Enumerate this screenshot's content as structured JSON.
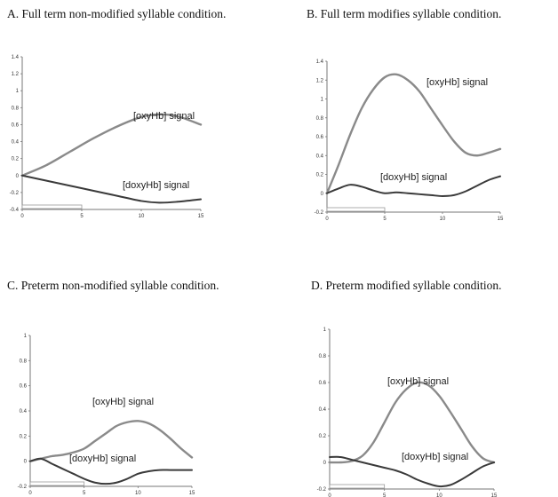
{
  "chart_data": [
    {
      "type": "line",
      "title": "A. Full term non-modified syllable condition.",
      "xlim": [
        0,
        15
      ],
      "ylim": [
        -0.4,
        1.4
      ],
      "xticks": [
        "0",
        "5",
        "10",
        "15"
      ],
      "yticks": [
        "-0.4",
        "-0.2",
        "0",
        "0.2",
        "0.4",
        "0.6",
        "0.8",
        "1",
        "1.2",
        "1.4"
      ],
      "grid": false,
      "series": [
        {
          "name": "[oxyHb] signal",
          "x": [
            0,
            2,
            4,
            6,
            8,
            10,
            11.5,
            13,
            15
          ],
          "values": [
            0,
            0.12,
            0.28,
            0.44,
            0.58,
            0.69,
            0.72,
            0.7,
            0.6
          ]
        },
        {
          "name": "[doxyHb] signal",
          "x": [
            0,
            2,
            4,
            6,
            8,
            10,
            11.5,
            13,
            15
          ],
          "values": [
            0,
            -0.06,
            -0.12,
            -0.18,
            -0.24,
            -0.3,
            -0.32,
            -0.31,
            -0.28
          ]
        }
      ],
      "stimulus": [
        0,
        5
      ]
    },
    {
      "type": "line",
      "title": "B. Full term modifies syllable condition.",
      "xlim": [
        0,
        15
      ],
      "ylim": [
        -0.2,
        1.4
      ],
      "xticks": [
        "0",
        "5",
        "10",
        "15"
      ],
      "yticks": [
        "-0.2",
        "0",
        "0.2",
        "0.4",
        "0.6",
        "0.8",
        "1",
        "1.2",
        "1.4"
      ],
      "grid": false,
      "series": [
        {
          "name": "[oxyHb] signal",
          "x": [
            0,
            1,
            2,
            3,
            4,
            5,
            6,
            7,
            8,
            9,
            10,
            11,
            12,
            13,
            14,
            15
          ],
          "values": [
            0,
            0.3,
            0.62,
            0.9,
            1.1,
            1.23,
            1.26,
            1.2,
            1.08,
            0.9,
            0.72,
            0.55,
            0.43,
            0.4,
            0.43,
            0.47
          ]
        },
        {
          "name": "[doxyHb] signal",
          "x": [
            0,
            1,
            2,
            3,
            4,
            5,
            6,
            7,
            8,
            9,
            10,
            11,
            12,
            13,
            14,
            15
          ],
          "values": [
            0,
            0.05,
            0.09,
            0.07,
            0.03,
            0.0,
            0.01,
            0.0,
            -0.01,
            -0.02,
            -0.03,
            -0.02,
            0.02,
            0.08,
            0.14,
            0.18
          ]
        }
      ],
      "stimulus": [
        0,
        5
      ]
    },
    {
      "type": "line",
      "title": "C. Preterm non-modified syllable condition.",
      "xlim": [
        0,
        15
      ],
      "ylim": [
        -0.2,
        1.0
      ],
      "xticks": [
        "0",
        "5",
        "10",
        "15"
      ],
      "yticks": [
        "-0.2",
        "0",
        "0.2",
        "0.4",
        "0.6",
        "0.8",
        "1"
      ],
      "grid": false,
      "series": [
        {
          "name": "[oxyHb] signal",
          "x": [
            0,
            1,
            2,
            3,
            4,
            5,
            6,
            7,
            8,
            9,
            10,
            11,
            12,
            13,
            14,
            15
          ],
          "values": [
            0,
            0.02,
            0.04,
            0.05,
            0.07,
            0.1,
            0.16,
            0.22,
            0.28,
            0.31,
            0.32,
            0.3,
            0.25,
            0.18,
            0.1,
            0.03
          ]
        },
        {
          "name": "[doxyHb] signal",
          "x": [
            0,
            1,
            2,
            3,
            4,
            5,
            6,
            7,
            8,
            9,
            10,
            11,
            12,
            13,
            14,
            15
          ],
          "values": [
            0,
            0.02,
            -0.02,
            -0.06,
            -0.1,
            -0.14,
            -0.17,
            -0.18,
            -0.17,
            -0.14,
            -0.1,
            -0.08,
            -0.07,
            -0.07,
            -0.07,
            -0.07
          ]
        }
      ],
      "stimulus": [
        0,
        5
      ]
    },
    {
      "type": "line",
      "title": "D. Preterm modified syllable condition.",
      "xlim": [
        0,
        15
      ],
      "ylim": [
        -0.2,
        1.0
      ],
      "xticks": [
        "0",
        "5",
        "10",
        "15"
      ],
      "yticks": [
        "-0.2",
        "0",
        "0.2",
        "0.4",
        "0.6",
        "0.8",
        "1"
      ],
      "grid": false,
      "series": [
        {
          "name": "[oxyHb] signal",
          "x": [
            0,
            1,
            2,
            3,
            4,
            5,
            6,
            7,
            8,
            9,
            10,
            11,
            12,
            13,
            14,
            15
          ],
          "values": [
            0,
            0.0,
            0.01,
            0.05,
            0.15,
            0.3,
            0.45,
            0.55,
            0.6,
            0.58,
            0.5,
            0.38,
            0.25,
            0.12,
            0.03,
            0.0
          ]
        },
        {
          "name": "[doxyHb] signal",
          "x": [
            0,
            1,
            2,
            3,
            4,
            5,
            6,
            7,
            8,
            9,
            10,
            11,
            12,
            13,
            14,
            15
          ],
          "values": [
            0.04,
            0.04,
            0.02,
            0.0,
            -0.02,
            -0.04,
            -0.06,
            -0.09,
            -0.13,
            -0.16,
            -0.18,
            -0.17,
            -0.13,
            -0.08,
            -0.03,
            0.0
          ]
        }
      ],
      "stimulus": [
        0,
        5
      ]
    }
  ]
}
